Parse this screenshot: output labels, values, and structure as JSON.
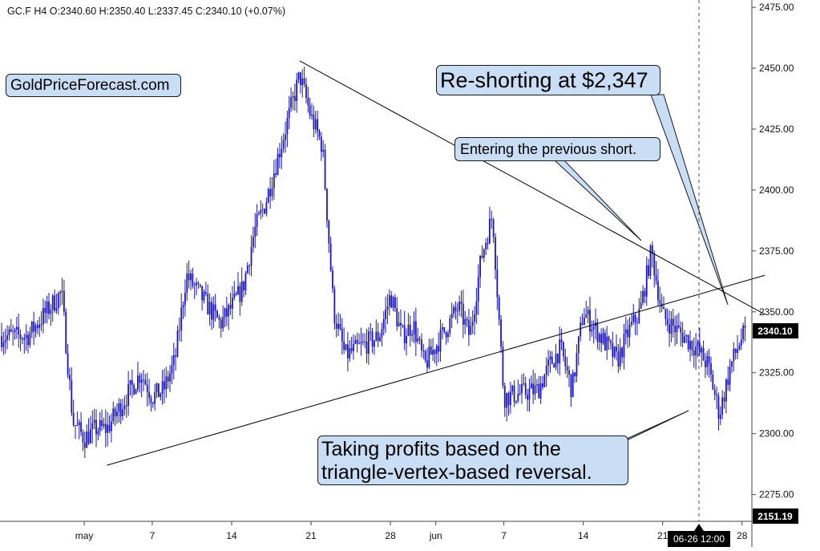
{
  "chart_data": {
    "type": "candlestick",
    "symbol": "GC.F",
    "interval": "H4",
    "ohlc_header": "GC.F  H4  O:2340.60  H:2350.40  L:2337.45  C:2340.10  (+0.07%)",
    "y_axis": {
      "ylim": [
        2264,
        2478
      ],
      "ticks": [
        "2475.00",
        "2450.00",
        "2425.00",
        "2400.00",
        "2375.00",
        "2350.00",
        "2325.00",
        "2300.00",
        "2275.00"
      ],
      "tick_values": [
        2475,
        2450,
        2425,
        2400,
        2375,
        2350,
        2325,
        2300,
        2275
      ],
      "last_price_label": "2340.10",
      "last_price_value": 2340.1,
      "bottom_label": "2151.19"
    },
    "x_axis": {
      "ticks": [
        "may",
        "7",
        "14",
        "21",
        "28",
        "jun",
        "7",
        "14",
        "21",
        "28"
      ],
      "crosshair_label": "06-26 12:00"
    },
    "price_path": [
      [
        "2024-04-26",
        2340
      ],
      [
        "2024-04-29",
        2358
      ],
      [
        "2024-04-30",
        2305
      ],
      [
        "2024-05-01",
        2298
      ],
      [
        "2024-05-02",
        2302
      ],
      [
        "2024-05-03",
        2302
      ],
      [
        "2024-05-06",
        2325
      ],
      [
        "2024-05-07",
        2315
      ],
      [
        "2024-05-08",
        2318
      ],
      [
        "2024-05-09",
        2330
      ],
      [
        "2024-05-10",
        2365
      ],
      [
        "2024-05-13",
        2345
      ],
      [
        "2024-05-14",
        2352
      ],
      [
        "2024-05-15",
        2360
      ],
      [
        "2024-05-16",
        2383
      ],
      [
        "2024-05-17",
        2395
      ],
      [
        "2024-05-20",
        2447
      ],
      [
        "2024-05-21",
        2430
      ],
      [
        "2024-05-22",
        2418
      ],
      [
        "2024-05-23",
        2350
      ],
      [
        "2024-05-24",
        2332
      ],
      [
        "2024-05-27",
        2340
      ],
      [
        "2024-05-28",
        2357
      ],
      [
        "2024-05-29",
        2340
      ],
      [
        "2024-05-30",
        2345
      ],
      [
        "2024-05-31",
        2328
      ],
      [
        "2024-06-03",
        2352
      ],
      [
        "2024-06-04",
        2340
      ],
      [
        "2024-06-05",
        2372
      ],
      [
        "2024-06-06",
        2390
      ],
      [
        "2024-06-07",
        2315
      ],
      [
        "2024-06-10",
        2318
      ],
      [
        "2024-06-11",
        2328
      ],
      [
        "2024-06-12",
        2335
      ],
      [
        "2024-06-13",
        2318
      ],
      [
        "2024-06-14",
        2350
      ],
      [
        "2024-06-17",
        2330
      ],
      [
        "2024-06-18",
        2342
      ],
      [
        "2024-06-19",
        2350
      ],
      [
        "2024-06-20",
        2375
      ],
      [
        "2024-06-21",
        2348
      ],
      [
        "2024-06-24",
        2335
      ],
      [
        "2024-06-25",
        2328
      ],
      [
        "2024-06-26",
        2308
      ],
      [
        "2024-06-27",
        2328
      ],
      [
        "2024-06-28",
        2340
      ]
    ],
    "trendlines": [
      {
        "from": [
          "2024-05-20",
          2453
        ],
        "to": [
          "2024-06-30",
          2349
        ]
      },
      {
        "from": [
          "2024-05-03",
          2287
        ],
        "to": [
          "2024-06-30",
          2365
        ]
      }
    ],
    "annotations": [
      {
        "text": "GoldPriceForecast.com"
      },
      {
        "text": "Re-shorting at $2,347"
      },
      {
        "text": "Entering the previous short."
      },
      {
        "text": "Taking profits based on the triangle-vertex-based reversal."
      }
    ],
    "candle_color": "#1a14c8",
    "axis_label_bg": "#000000"
  }
}
